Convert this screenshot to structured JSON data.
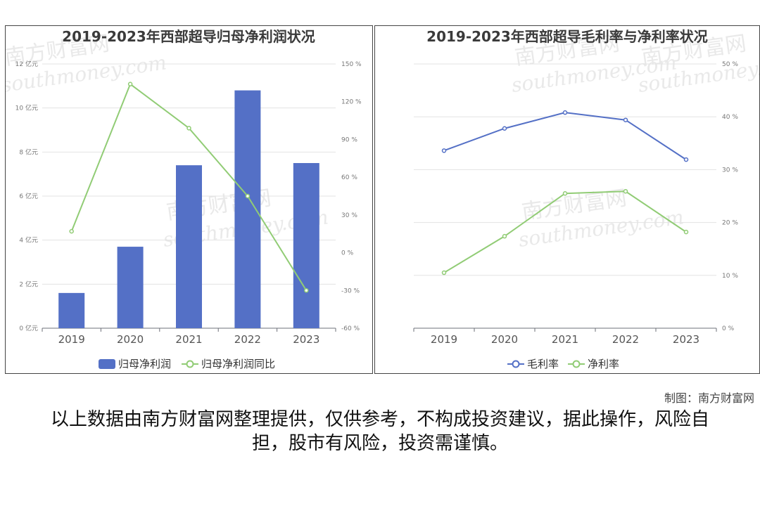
{
  "charts": [
    {
      "title": "2019-2023年西部超导归母净利润状况",
      "categories": [
        "2019",
        "2020",
        "2021",
        "2022",
        "2023"
      ],
      "left_ticks": [
        "0 亿元",
        "2 亿元",
        "4 亿元",
        "6 亿元",
        "8 亿元",
        "10 亿元",
        "12 亿元"
      ],
      "right_ticks": [
        "-60 %",
        "-30 %",
        "0 %",
        "30 %",
        "60 %",
        "90 %",
        "120 %",
        "150 %"
      ],
      "legend": [
        "归母净利润",
        "归母净利润同比"
      ]
    },
    {
      "title": "2019-2023年西部超导毛利率与净利率状况",
      "categories": [
        "2019",
        "2020",
        "2021",
        "2022",
        "2023"
      ],
      "right_ticks": [
        "0 %",
        "10 %",
        "20 %",
        "30 %",
        "40 %",
        "50 %"
      ],
      "legend": [
        "毛利率",
        "净利率"
      ]
    }
  ],
  "chart_data": [
    {
      "type": "bar",
      "title": "2019-2023年西部超导归母净利润状况",
      "categories": [
        "2019",
        "2020",
        "2021",
        "2022",
        "2023"
      ],
      "series": [
        {
          "name": "归母净利润",
          "type": "bar",
          "axis": "left",
          "values": [
            1.6,
            3.7,
            7.4,
            10.8,
            7.5
          ]
        },
        {
          "name": "归母净利润同比",
          "type": "line",
          "axis": "right",
          "values": [
            17,
            134,
            99,
            45,
            -30
          ]
        }
      ],
      "ylim_left": [
        0,
        12
      ],
      "ylim_right": [
        -60,
        150
      ],
      "colors": {
        "bar": "#5470c6",
        "line": "#91cc75"
      },
      "grid": true,
      "legend_position": "bottom"
    },
    {
      "type": "line",
      "title": "2019-2023年西部超导毛利率与净利率状况",
      "categories": [
        "2019",
        "2020",
        "2021",
        "2022",
        "2023"
      ],
      "series": [
        {
          "name": "毛利率",
          "values": [
            33.6,
            37.8,
            40.8,
            39.4,
            31.9
          ]
        },
        {
          "name": "净利率",
          "values": [
            10.5,
            17.4,
            25.5,
            25.9,
            18.2
          ]
        }
      ],
      "ylim": [
        0,
        50
      ],
      "colors": {
        "毛利率": "#5470c6",
        "净利率": "#91cc75"
      },
      "grid": true,
      "legend_position": "bottom"
    }
  ],
  "watermark": {
    "cn": "南方财富网",
    "en": "southmoney.com"
  },
  "credit": "制图：南方财富网",
  "disclaimer": "以上数据由南方财富网整理提供，仅供参考，不构成投资建议，据此操作，风险自担，股市有风险，投资需谨慎。"
}
